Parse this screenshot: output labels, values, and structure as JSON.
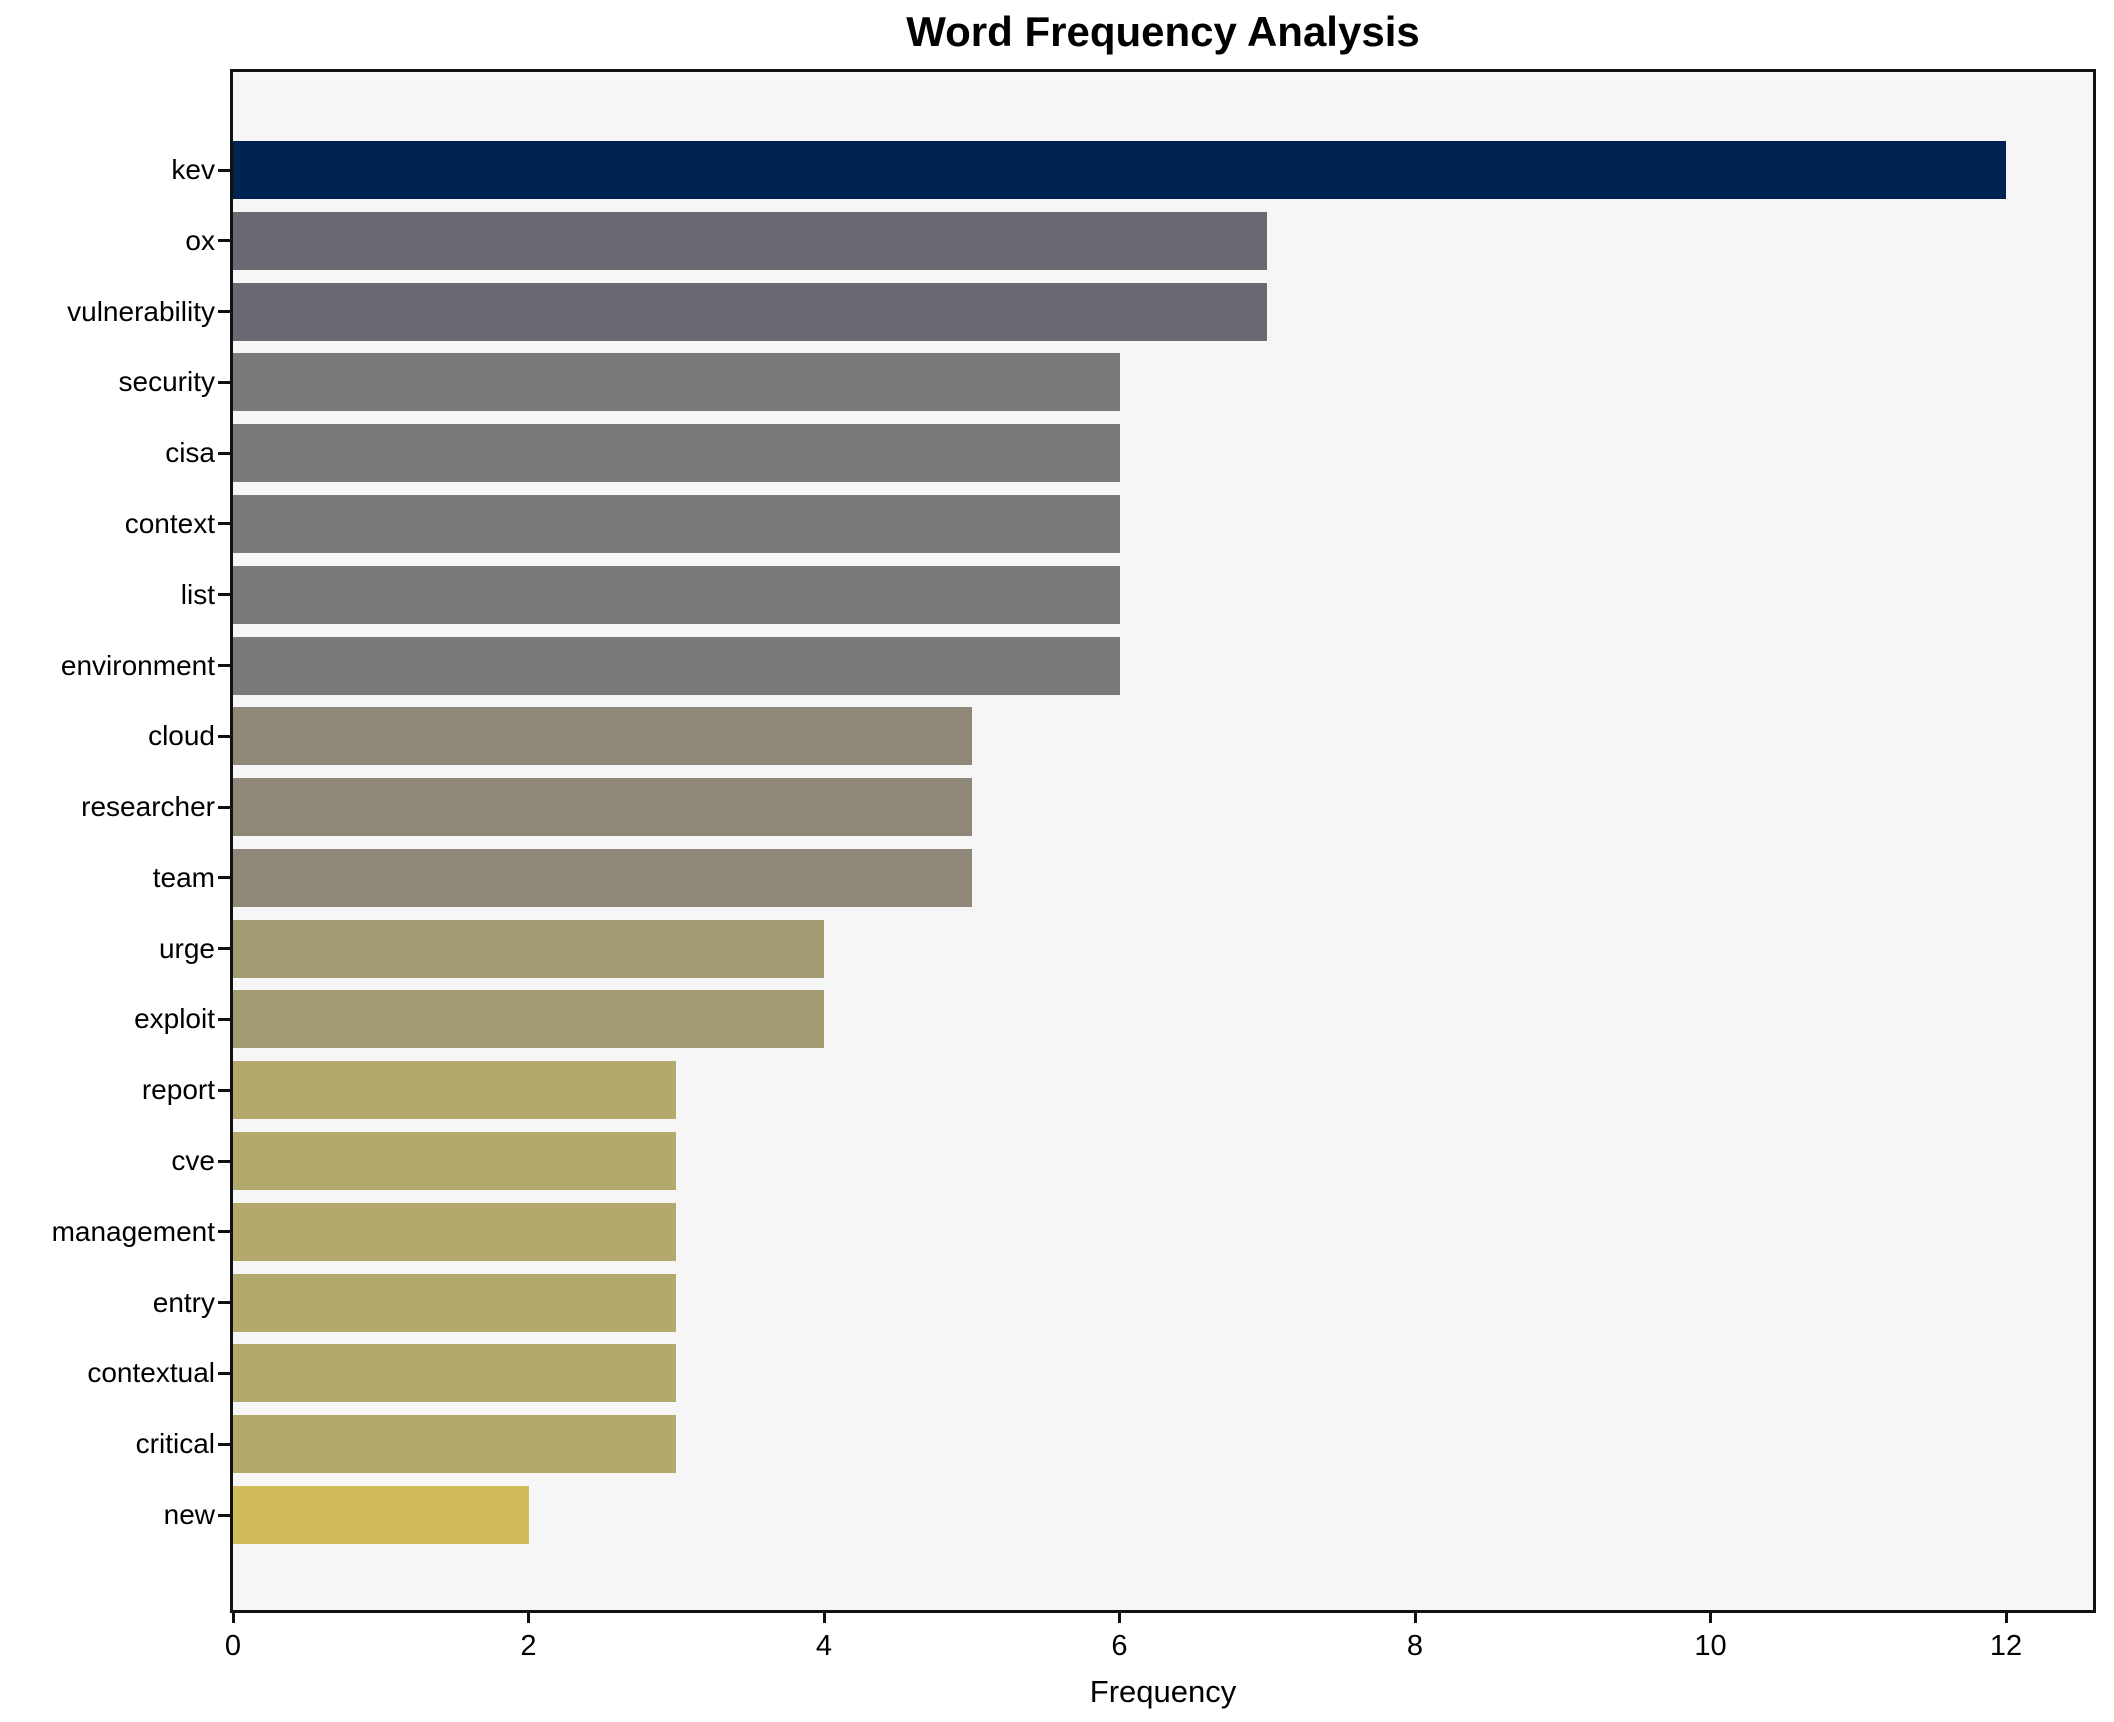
{
  "chart_data": {
    "type": "bar",
    "orientation": "horizontal",
    "title": "Word Frequency Analysis",
    "xlabel": "Frequency",
    "ylabel": "",
    "categories": [
      "kev",
      "ox",
      "vulnerability",
      "security",
      "cisa",
      "context",
      "list",
      "environment",
      "cloud",
      "researcher",
      "team",
      "urge",
      "exploit",
      "report",
      "cve",
      "management",
      "entry",
      "contextual",
      "critical",
      "new"
    ],
    "values": [
      12,
      7,
      7,
      6,
      6,
      6,
      6,
      6,
      5,
      5,
      5,
      4,
      4,
      3,
      3,
      3,
      3,
      3,
      3,
      2
    ],
    "bar_colors": [
      "#002452",
      "#696a71",
      "#696a71",
      "#7a7a78",
      "#7a7a78",
      "#7a7a78",
      "#7a7a78",
      "#7a7a78",
      "#8f8878",
      "#8f8878",
      "#8f8878",
      "#a39a72",
      "#a39a72",
      "#b3a96d",
      "#b3a96d",
      "#b3a96d",
      "#b3a96d",
      "#b3a96d",
      "#b3a96d",
      "#d2bc5a"
    ],
    "x_ticks": [
      0,
      2,
      4,
      6,
      8,
      10,
      12
    ],
    "xlim": [
      0,
      12.6
    ],
    "grid": false,
    "legend": null,
    "plot_background": "#f6f6f7",
    "figure_background": "#ffffff",
    "axis_color": "#111113",
    "text_color": "#000000"
  }
}
